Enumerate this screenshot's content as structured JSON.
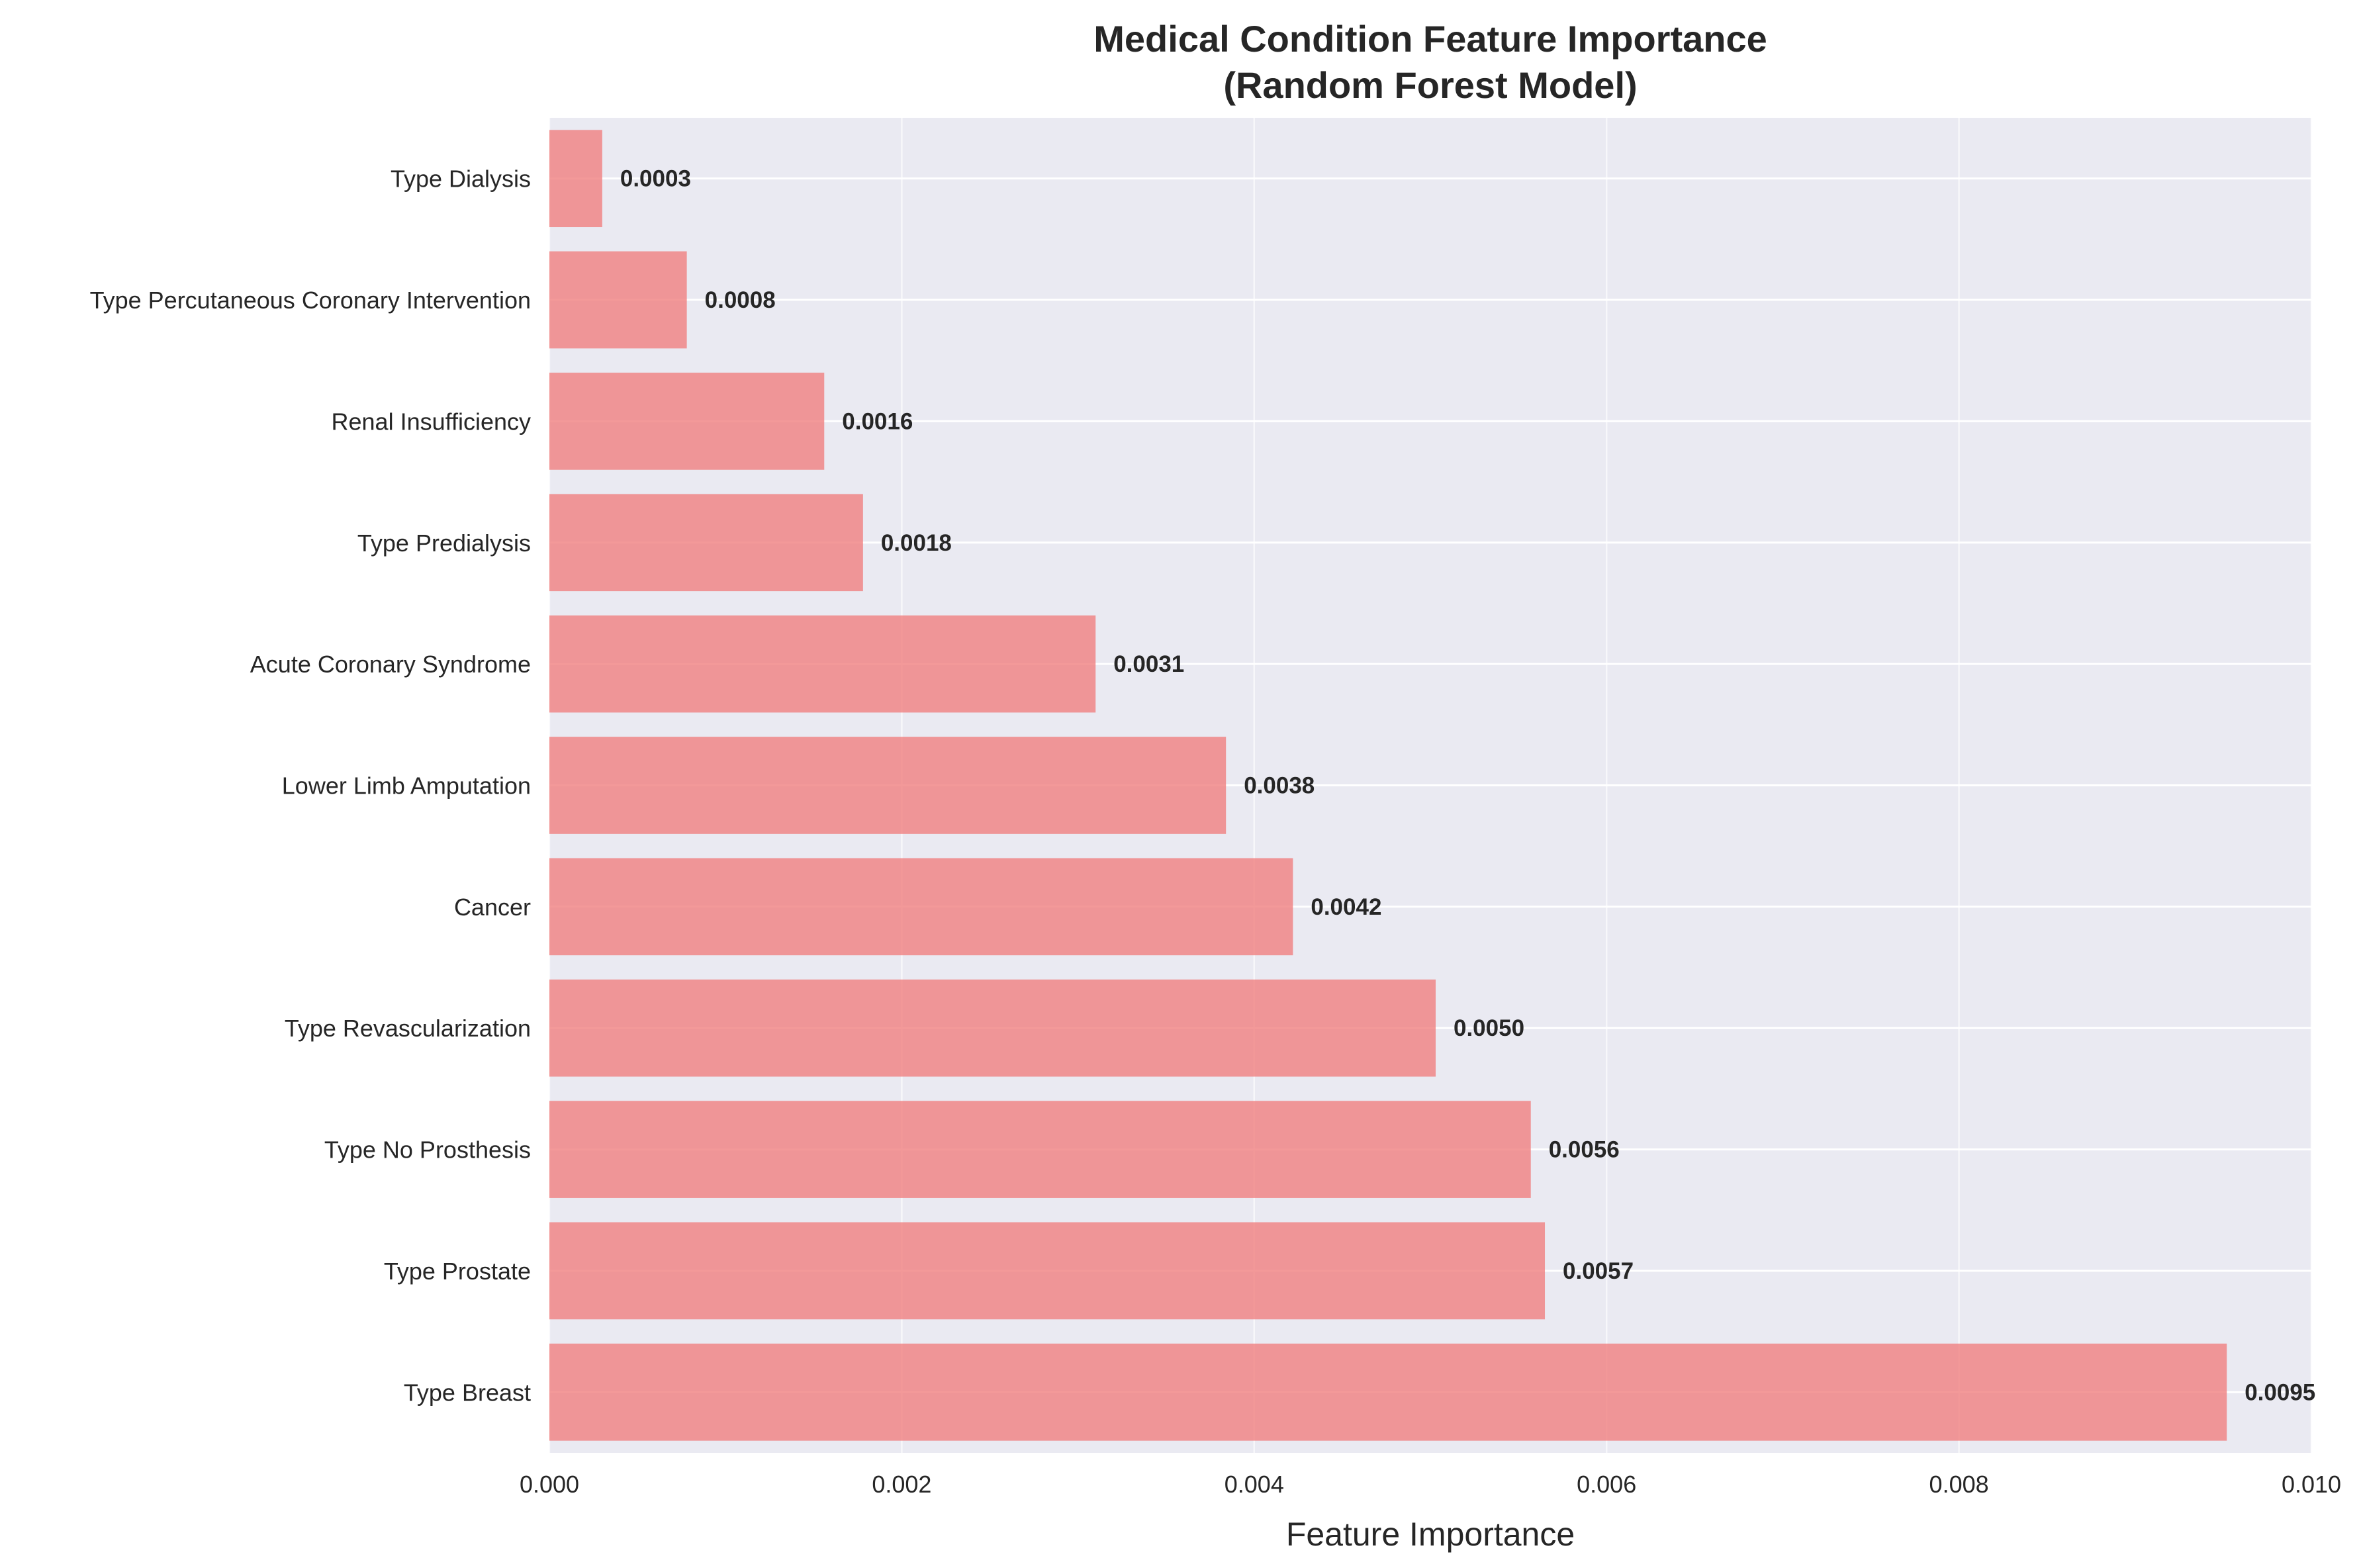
{
  "chart_data": {
    "type": "bar",
    "orientation": "horizontal",
    "title_lines": [
      "Medical Condition Feature Importance",
      "(Random Forest Model)"
    ],
    "xlabel": "Feature Importance",
    "ylabel": "",
    "xlim": [
      0,
      0.01
    ],
    "xticks": [
      "0.000",
      "0.002",
      "0.004",
      "0.006",
      "0.008",
      "0.010"
    ],
    "xtick_values": [
      0,
      0.002,
      0.004,
      0.006,
      0.008,
      0.01
    ],
    "grid": true,
    "bar_color": "#f08080",
    "background_color": "#eaeaf2",
    "categories": [
      "Type Dialysis",
      "Type Percutaneous Coronary Intervention",
      "Renal Insufficiency",
      "Type Predialysis",
      "Acute Coronary Syndrome",
      "Lower Limb Amputation",
      "Cancer",
      "Type Revascularization",
      "Type No Prosthesis",
      "Type Prostate",
      "Type Breast"
    ],
    "values": [
      0.0003,
      0.00078,
      0.00156,
      0.00178,
      0.0031,
      0.00384,
      0.00422,
      0.00503,
      0.00557,
      0.00565,
      0.00952
    ],
    "value_labels": [
      "0.0003",
      "0.0008",
      "0.0016",
      "0.0018",
      "0.0031",
      "0.0038",
      "0.0042",
      "0.0050",
      "0.0056",
      "0.0057",
      "0.0095"
    ]
  }
}
